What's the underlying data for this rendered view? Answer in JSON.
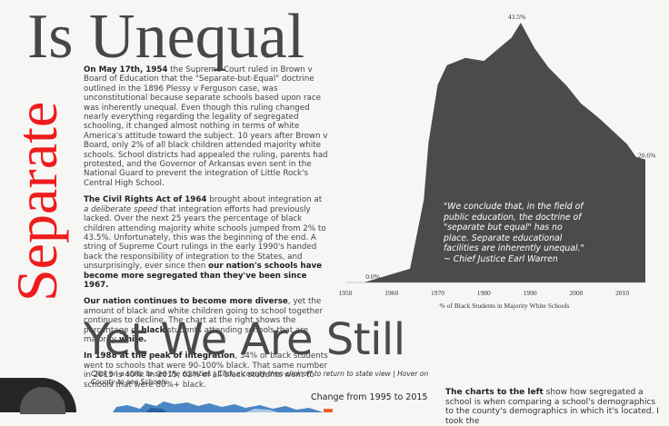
{
  "titles": {
    "top": "Is Unequal",
    "vertical": "Separate",
    "bottom": "Yet We Are Still"
  },
  "body": {
    "p1": {
      "date": "On May 17th, 1954",
      "rest": " the Supreme Court ruled in Brown v Board of Education that the \"Separate-but-Equal\" doctrine outlined in the 1896 Plessy v Ferguson case, was unconstitutional because separate schools based upon race was inherently unequal.  Even though this ruling changed nearly everything regarding the legality of segregated schooling, it changed almost nothing in terms of white America's attitude toward the subject. 10 years after Brown v Board, only 2% of all black children attended majority white schools. School districts had appealed the ruling, parents had protested, and the Governor of Arkansas even sent in the National Guard to prevent the integration of Little Rock's Central High School."
    },
    "p2": {
      "lead": "The Civil Rights Act of 1964",
      "mid1": " brought about integration at ",
      "italic": "a deliberate speed",
      "mid2": " that integration efforts had previously lacked. Over the next 25 years the percentage of black children attending majority white schools jumped from 2% to 43.5%. Unfortunately, this was the beginning of the end. A string of Supreme Court rulings in the early 1990's handed back the responsibility of integration to the States, and unsurprisingly, ever since then ",
      "bold_end": "our nation's schools have become more segregated than they've been since 1967."
    },
    "p3": {
      "lead": "Our nation continues to become more diverse",
      "mid": ", yet the amount of black and white children going to school together continues to decline. The chart at the right shows the percentage of ",
      "bold1": "black",
      "mid2": " students attending schools that are majority ",
      "bold2": "white."
    },
    "p4": {
      "lead": "In 1988 at the peak of integration",
      "rest": ", 34% of black students went to schools that were 90-100% black. That same number in 2015 is 40%. In 2015, 62% of all black students went to schools that were 80%+ black."
    }
  },
  "chart_data": {
    "type": "area",
    "x": [
      1954,
      1964,
      1967,
      1968,
      1970,
      1972,
      1976,
      1980,
      1986,
      1988,
      1991,
      1994,
      1998,
      2001,
      2005,
      2011,
      2013,
      2015
    ],
    "y": [
      0.0,
      2.3,
      13.9,
      23.4,
      33.1,
      36.4,
      37.6,
      37.1,
      41.0,
      43.5,
      39.2,
      36.0,
      32.9,
      30.0,
      27.5,
      23.2,
      21.0,
      20.6
    ],
    "labels": {
      "peak": "43.5%",
      "end": "20.6%",
      "start": "0.0%"
    },
    "xticks": [
      "1950",
      "1960",
      "1970",
      "1980",
      "1990",
      "2000",
      "2010"
    ],
    "xlabel": "% of Black Students in Majority White Schools",
    "xlim": [
      1950,
      2015
    ],
    "ylim": [
      0,
      43.5
    ],
    "fill": "#4b4b4b"
  },
  "quote": "\"We conclude that, in the field of public education, the doctrine of \"separate but equal\" has no place. Separate educational facilities are inherently unequal.\" ~ Chief Justice Earl Warren",
  "instructions": "Click on a state to see the counties | Click a county then click off to return to state view | Hover on County to see Schools",
  "legend": {
    "title": "Change from 1995 to 2015"
  },
  "right": {
    "bold": "The charts to the left",
    "rest": " show how segregated a school is when comparing a school's demographics to the county's demographics in which it's located. I took the"
  },
  "colors": {
    "title": "#474747",
    "vertical": "#ee1c1c",
    "area": "#4b4b4b",
    "map": "#4a86c5"
  }
}
